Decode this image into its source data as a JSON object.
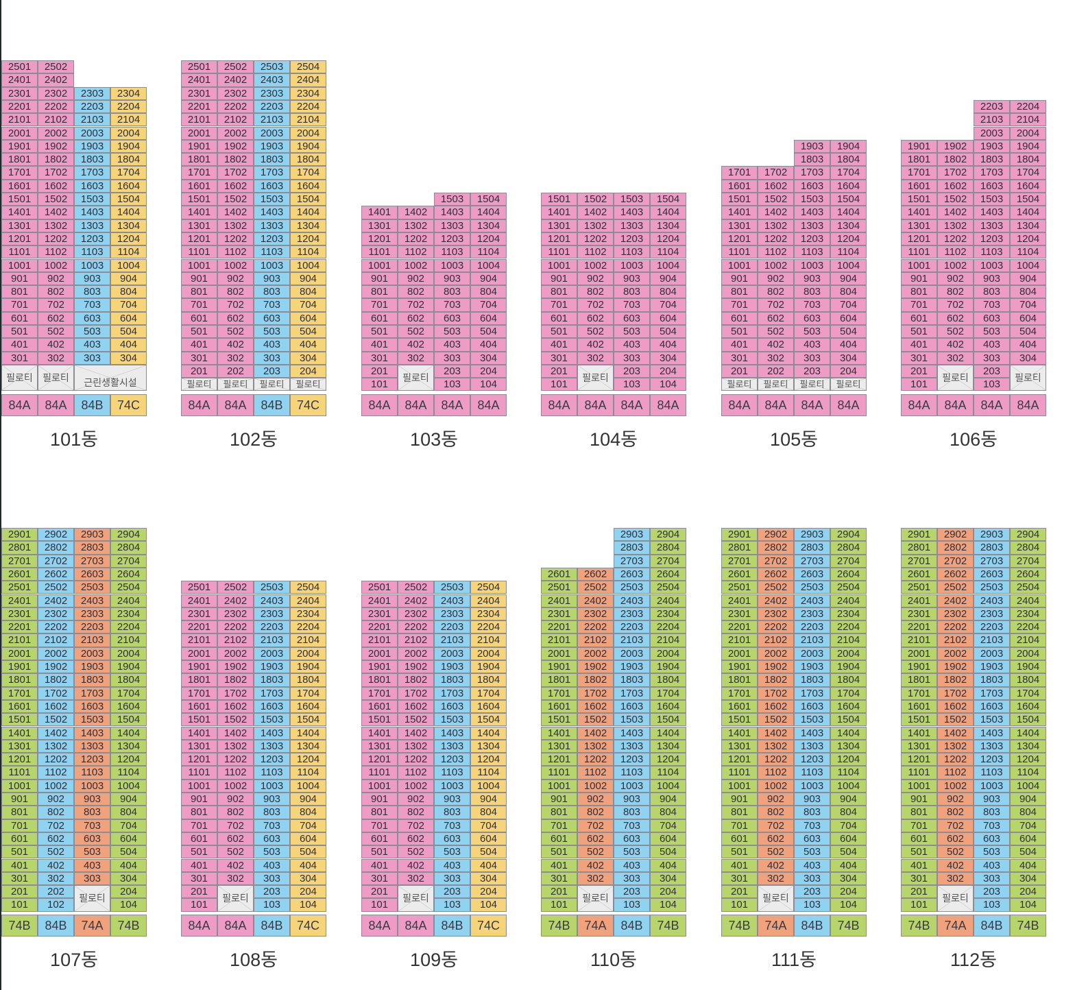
{
  "pilotis_label": "필로티",
  "shop_label": "근린생활시설",
  "colors": {
    "pink": "#ee9cc5",
    "blue": "#8fd3f1",
    "yellow": "#f6d57a",
    "green": "#b8d56b",
    "orange": "#f0a27c",
    "gray": "#ececec"
  },
  "rows": [
    {
      "buildings": [
        {
          "name": "101동",
          "shop": "근린생활시설",
          "columns": [
            {
              "type": "84A",
              "color": "pink",
              "top": 25,
              "pilotis": "2"
            },
            {
              "type": "84A",
              "color": "pink",
              "top": 25,
              "pilotis": "2"
            },
            {
              "type": "84B",
              "color": "blue",
              "top": 23,
              "pilotis": "shop"
            },
            {
              "type": "74C",
              "color": "yellow",
              "top": 23,
              "pilotis": "shop"
            }
          ]
        },
        {
          "name": "102동",
          "columns": [
            {
              "type": "84A",
              "color": "pink",
              "top": 25,
              "pilotis": "1"
            },
            {
              "type": "84A",
              "color": "pink",
              "top": 25,
              "pilotis": "1"
            },
            {
              "type": "84B",
              "color": "blue",
              "top": 25,
              "pilotis": "1"
            },
            {
              "type": "74C",
              "color": "yellow",
              "top": 25,
              "pilotis": "1"
            }
          ]
        },
        {
          "name": "103동",
          "columns": [
            {
              "type": "84A",
              "color": "pink",
              "top": 14,
              "pilotis": "none"
            },
            {
              "type": "84A",
              "color": "pink",
              "top": 14,
              "pilotis": "2"
            },
            {
              "type": "84A",
              "color": "pink",
              "top": 15,
              "pilotis": "none"
            },
            {
              "type": "84A",
              "color": "pink",
              "top": 15,
              "pilotis": "none"
            }
          ]
        },
        {
          "name": "104동",
          "columns": [
            {
              "type": "84A",
              "color": "pink",
              "top": 15,
              "pilotis": "none"
            },
            {
              "type": "84A",
              "color": "pink",
              "top": 15,
              "pilotis": "2"
            },
            {
              "type": "84A",
              "color": "pink",
              "top": 15,
              "pilotis": "none"
            },
            {
              "type": "84A",
              "color": "pink",
              "top": 15,
              "pilotis": "none"
            }
          ]
        },
        {
          "name": "105동",
          "columns": [
            {
              "type": "84A",
              "color": "pink",
              "top": 17,
              "pilotis": "1"
            },
            {
              "type": "84A",
              "color": "pink",
              "top": 17,
              "pilotis": "1"
            },
            {
              "type": "84A",
              "color": "pink",
              "top": 19,
              "pilotis": "1"
            },
            {
              "type": "84A",
              "color": "pink",
              "top": 19,
              "pilotis": "1"
            }
          ]
        },
        {
          "name": "106동",
          "columns": [
            {
              "type": "84A",
              "color": "pink",
              "top": 19,
              "pilotis": "none"
            },
            {
              "type": "84A",
              "color": "pink",
              "top": 19,
              "pilotis": "2"
            },
            {
              "type": "84A",
              "color": "pink",
              "top": 22,
              "pilotis": "none"
            },
            {
              "type": "84A",
              "color": "pink",
              "top": 22,
              "pilotis": "2"
            }
          ]
        }
      ]
    },
    {
      "buildings": [
        {
          "name": "107동",
          "columns": [
            {
              "type": "74B",
              "color": "green",
              "top": 29,
              "pilotis": "none"
            },
            {
              "type": "84B",
              "color": "blue",
              "top": 29,
              "pilotis": "none"
            },
            {
              "type": "74A",
              "color": "orange",
              "top": 29,
              "pilotis": "2"
            },
            {
              "type": "74B",
              "color": "green",
              "top": 29,
              "pilotis": "none"
            }
          ]
        },
        {
          "name": "108동",
          "columns": [
            {
              "type": "84A",
              "color": "pink",
              "top": 25,
              "pilotis": "none"
            },
            {
              "type": "84A",
              "color": "pink",
              "top": 25,
              "pilotis": "2"
            },
            {
              "type": "84B",
              "color": "blue",
              "top": 25,
              "pilotis": "none"
            },
            {
              "type": "74C",
              "color": "yellow",
              "top": 25,
              "pilotis": "none"
            }
          ]
        },
        {
          "name": "109동",
          "columns": [
            {
              "type": "84A",
              "color": "pink",
              "top": 25,
              "pilotis": "none"
            },
            {
              "type": "84A",
              "color": "pink",
              "top": 25,
              "pilotis": "2"
            },
            {
              "type": "84B",
              "color": "blue",
              "top": 25,
              "pilotis": "none"
            },
            {
              "type": "74C",
              "color": "yellow",
              "top": 25,
              "pilotis": "none"
            }
          ]
        },
        {
          "name": "110동",
          "columns": [
            {
              "type": "74B",
              "color": "green",
              "top": 26,
              "pilotis": "none"
            },
            {
              "type": "74A",
              "color": "orange",
              "top": 26,
              "pilotis": "2"
            },
            {
              "type": "84B",
              "color": "blue",
              "top": 29,
              "pilotis": "none"
            },
            {
              "type": "74B",
              "color": "green",
              "top": 29,
              "pilotis": "none"
            }
          ]
        },
        {
          "name": "111동",
          "columns": [
            {
              "type": "74B",
              "color": "green",
              "top": 29,
              "pilotis": "none"
            },
            {
              "type": "74A",
              "color": "orange",
              "top": 29,
              "pilotis": "2"
            },
            {
              "type": "84B",
              "color": "blue",
              "top": 29,
              "pilotis": "none"
            },
            {
              "type": "74B",
              "color": "green",
              "top": 29,
              "pilotis": "none"
            }
          ]
        },
        {
          "name": "112동",
          "columns": [
            {
              "type": "74B",
              "color": "green",
              "top": 29,
              "pilotis": "none"
            },
            {
              "type": "74A",
              "color": "orange",
              "top": 29,
              "pilotis": "2"
            },
            {
              "type": "84B",
              "color": "blue",
              "top": 29,
              "pilotis": "none"
            },
            {
              "type": "74B",
              "color": "green",
              "top": 29,
              "pilotis": "none"
            }
          ]
        }
      ]
    }
  ]
}
